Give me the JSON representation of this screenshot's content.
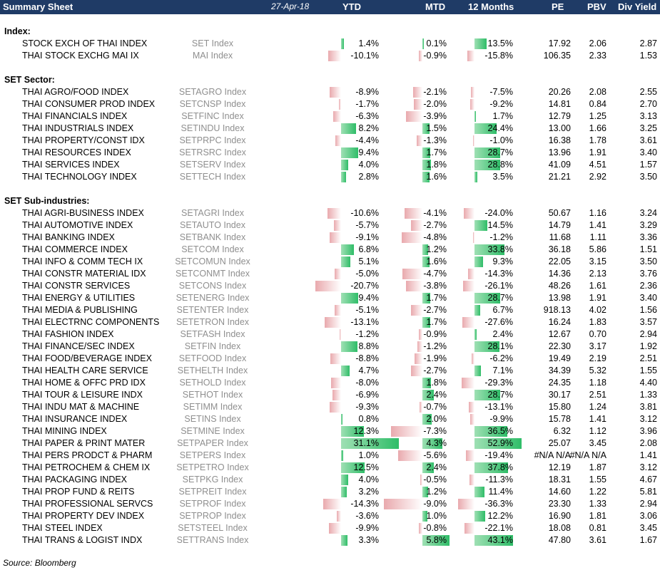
{
  "header": {
    "title": "Summary Sheet",
    "date": "27-Apr-18",
    "cols": [
      "YTD",
      "MTD",
      "12 Months",
      "PE",
      "PBV",
      "Div Yield"
    ]
  },
  "sections": [
    {
      "title": "Index:",
      "rows": [
        {
          "name": "STOCK EXCH OF THAI INDEX",
          "ticker": "SET Index",
          "ytd": "1.4%",
          "ytd_v": 1.4,
          "mtd": "0.1%",
          "mtd_v": 0.1,
          "m12": "13.5%",
          "m12_v": 13.5,
          "pe": "17.92",
          "pbv": "2.06",
          "dy": "2.87"
        },
        {
          "name": "THAI STOCK EXCHG MAI IX",
          "ticker": "MAI Index",
          "ytd": "-10.1%",
          "ytd_v": -10.1,
          "mtd": "-0.9%",
          "mtd_v": -0.9,
          "m12": "-15.8%",
          "m12_v": -15.8,
          "pe": "106.35",
          "pbv": "2.33",
          "dy": "1.53"
        }
      ]
    },
    {
      "title": "SET Sector:",
      "rows": [
        {
          "name": "THAI AGRO/FOOD INDEX",
          "ticker": "SETAGRO Index",
          "ytd": "-8.9%",
          "ytd_v": -8.9,
          "mtd": "-2.1%",
          "mtd_v": -2.1,
          "m12": "-7.5%",
          "m12_v": -7.5,
          "pe": "20.26",
          "pbv": "2.08",
          "dy": "2.55"
        },
        {
          "name": "THAI CONSUMER PROD INDEX",
          "ticker": "SETCNSP Index",
          "ytd": "-1.7%",
          "ytd_v": -1.7,
          "mtd": "-2.0%",
          "mtd_v": -2.0,
          "m12": "-9.2%",
          "m12_v": -9.2,
          "pe": "14.81",
          "pbv": "0.84",
          "dy": "2.70"
        },
        {
          "name": "THAI FINANCIALS INDEX",
          "ticker": "SETFINC Index",
          "ytd": "-6.3%",
          "ytd_v": -6.3,
          "mtd": "-3.9%",
          "mtd_v": -3.9,
          "m12": "1.7%",
          "m12_v": 1.7,
          "pe": "12.79",
          "pbv": "1.25",
          "dy": "3.13"
        },
        {
          "name": "THAI INDUSTRIALS INDEX",
          "ticker": "SETINDU Index",
          "ytd": "8.2%",
          "ytd_v": 8.2,
          "mtd": "1.5%",
          "mtd_v": 1.5,
          "m12": "24.4%",
          "m12_v": 24.4,
          "pe": "13.00",
          "pbv": "1.66",
          "dy": "3.25"
        },
        {
          "name": "THAI PROPERTY/CONST IDX",
          "ticker": "SETPRPC Index",
          "ytd": "-4.4%",
          "ytd_v": -4.4,
          "mtd": "-1.3%",
          "mtd_v": -1.3,
          "m12": "-1.0%",
          "m12_v": -1.0,
          "pe": "16.38",
          "pbv": "1.78",
          "dy": "3.61"
        },
        {
          "name": "THAI RESOURCES INDEX",
          "ticker": "SETRSRC Index",
          "ytd": "9.4%",
          "ytd_v": 9.4,
          "mtd": "1.7%",
          "mtd_v": 1.7,
          "m12": "28.7%",
          "m12_v": 28.7,
          "pe": "13.96",
          "pbv": "1.91",
          "dy": "3.40"
        },
        {
          "name": "THAI SERVICES INDEX",
          "ticker": "SETSERV Index",
          "ytd": "4.0%",
          "ytd_v": 4.0,
          "mtd": "1.8%",
          "mtd_v": 1.8,
          "m12": "28.8%",
          "m12_v": 28.8,
          "pe": "41.09",
          "pbv": "4.51",
          "dy": "1.57"
        },
        {
          "name": "THAI TECHNOLOGY INDEX",
          "ticker": "SETTECH Index",
          "ytd": "2.8%",
          "ytd_v": 2.8,
          "mtd": "1.6%",
          "mtd_v": 1.6,
          "m12": "3.5%",
          "m12_v": 3.5,
          "pe": "21.21",
          "pbv": "2.92",
          "dy": "3.50"
        }
      ]
    },
    {
      "title": "SET Sub-industries:",
      "rows": [
        {
          "name": "THAI AGRI-BUSINESS INDEX",
          "ticker": "SETAGRI Index",
          "ytd": "-10.6%",
          "ytd_v": -10.6,
          "mtd": "-4.1%",
          "mtd_v": -4.1,
          "m12": "-24.0%",
          "m12_v": -24.0,
          "pe": "50.67",
          "pbv": "1.16",
          "dy": "3.24"
        },
        {
          "name": "THAI AUTOMOTIVE INDEX",
          "ticker": "SETAUTO Index",
          "ytd": "-5.7%",
          "ytd_v": -5.7,
          "mtd": "-2.7%",
          "mtd_v": -2.7,
          "m12": "14.5%",
          "m12_v": 14.5,
          "pe": "14.79",
          "pbv": "1.41",
          "dy": "3.29"
        },
        {
          "name": "THAI BANKING INDEX",
          "ticker": "SETBANK Index",
          "ytd": "-9.1%",
          "ytd_v": -9.1,
          "mtd": "-4.8%",
          "mtd_v": -4.8,
          "m12": "-1.2%",
          "m12_v": -1.2,
          "pe": "11.68",
          "pbv": "1.11",
          "dy": "3.36"
        },
        {
          "name": "THAI COMMERCE INDEX",
          "ticker": "SETCOM Index",
          "ytd": "6.8%",
          "ytd_v": 6.8,
          "mtd": "1.2%",
          "mtd_v": 1.2,
          "m12": "33.8%",
          "m12_v": 33.8,
          "pe": "36.18",
          "pbv": "5.86",
          "dy": "1.51"
        },
        {
          "name": "THAI INFO & COMM TECH IX",
          "ticker": "SETCOMUN Index",
          "ytd": "5.1%",
          "ytd_v": 5.1,
          "mtd": "1.6%",
          "mtd_v": 1.6,
          "m12": "9.3%",
          "m12_v": 9.3,
          "pe": "22.05",
          "pbv": "3.15",
          "dy": "3.50"
        },
        {
          "name": "THAI CONSTR MATERIAL IDX",
          "ticker": "SETCONMT Index",
          "ytd": "-5.0%",
          "ytd_v": -5.0,
          "mtd": "-4.7%",
          "mtd_v": -4.7,
          "m12": "-14.3%",
          "m12_v": -14.3,
          "pe": "14.36",
          "pbv": "2.13",
          "dy": "3.76"
        },
        {
          "name": "THAI CONSTR SERVICES",
          "ticker": "SETCONS Index",
          "ytd": "-20.7%",
          "ytd_v": -20.7,
          "mtd": "-3.8%",
          "mtd_v": -3.8,
          "m12": "-26.1%",
          "m12_v": -26.1,
          "pe": "48.26",
          "pbv": "1.61",
          "dy": "2.36"
        },
        {
          "name": "THAI ENERGY & UTILITIES",
          "ticker": "SETENERG Index",
          "ytd": "9.4%",
          "ytd_v": 9.4,
          "mtd": "1.7%",
          "mtd_v": 1.7,
          "m12": "28.7%",
          "m12_v": 28.7,
          "pe": "13.98",
          "pbv": "1.91",
          "dy": "3.40"
        },
        {
          "name": "THAI MEDIA & PUBLISHING",
          "ticker": "SETENTER Index",
          "ytd": "-5.1%",
          "ytd_v": -5.1,
          "mtd": "-2.7%",
          "mtd_v": -2.7,
          "m12": "6.7%",
          "m12_v": 6.7,
          "pe": "918.13",
          "pbv": "4.02",
          "dy": "1.56"
        },
        {
          "name": "THAI ELECTRNC COMPONENTS",
          "ticker": "SETETRON Index",
          "ytd": "-13.1%",
          "ytd_v": -13.1,
          "mtd": "1.7%",
          "mtd_v": 1.7,
          "m12": "-27.6%",
          "m12_v": -27.6,
          "pe": "16.24",
          "pbv": "1.83",
          "dy": "3.57"
        },
        {
          "name": "THAI FASHION INDEX",
          "ticker": "SETFASH Index",
          "ytd": "-1.2%",
          "ytd_v": -1.2,
          "mtd": "-0.9%",
          "mtd_v": -0.9,
          "m12": "2.4%",
          "m12_v": 2.4,
          "pe": "12.67",
          "pbv": "0.70",
          "dy": "2.94"
        },
        {
          "name": "THAI FINANCE/SEC INDEX",
          "ticker": "SETFIN Index",
          "ytd": "8.8%",
          "ytd_v": 8.8,
          "mtd": "-1.2%",
          "mtd_v": -1.2,
          "m12": "28.1%",
          "m12_v": 28.1,
          "pe": "22.30",
          "pbv": "3.17",
          "dy": "1.92"
        },
        {
          "name": "THAI FOOD/BEVERAGE INDEX",
          "ticker": "SETFOOD Index",
          "ytd": "-8.8%",
          "ytd_v": -8.8,
          "mtd": "-1.9%",
          "mtd_v": -1.9,
          "m12": "-6.2%",
          "m12_v": -6.2,
          "pe": "19.49",
          "pbv": "2.19",
          "dy": "2.51"
        },
        {
          "name": "THAI HEALTH CARE SERVICE",
          "ticker": "SETHELTH Index",
          "ytd": "4.7%",
          "ytd_v": 4.7,
          "mtd": "-2.7%",
          "mtd_v": -2.7,
          "m12": "7.1%",
          "m12_v": 7.1,
          "pe": "34.39",
          "pbv": "5.32",
          "dy": "1.55"
        },
        {
          "name": "THAI HOME & OFFC PRD IDX",
          "ticker": "SETHOLD Index",
          "ytd": "-8.0%",
          "ytd_v": -8.0,
          "mtd": "1.8%",
          "mtd_v": 1.8,
          "m12": "-29.3%",
          "m12_v": -29.3,
          "pe": "24.35",
          "pbv": "1.18",
          "dy": "4.40"
        },
        {
          "name": "THAI TOUR & LEISURE INDX",
          "ticker": "SETHOT Index",
          "ytd": "-6.9%",
          "ytd_v": -6.9,
          "mtd": "2.4%",
          "mtd_v": 2.4,
          "m12": "28.7%",
          "m12_v": 28.7,
          "pe": "30.17",
          "pbv": "2.51",
          "dy": "1.33"
        },
        {
          "name": "THAI INDU MAT & MACHINE",
          "ticker": "SETIMM Index",
          "ytd": "-9.3%",
          "ytd_v": -9.3,
          "mtd": "-0.7%",
          "mtd_v": -0.7,
          "m12": "-13.1%",
          "m12_v": -13.1,
          "pe": "15.80",
          "pbv": "1.24",
          "dy": "3.81"
        },
        {
          "name": "THAI INSURANCE INDEX",
          "ticker": "SETINS Index",
          "ytd": "0.8%",
          "ytd_v": 0.8,
          "mtd": "2.0%",
          "mtd_v": 2.0,
          "m12": "-9.9%",
          "m12_v": -9.9,
          "pe": "15.78",
          "pbv": "1.41",
          "dy": "3.12"
        },
        {
          "name": "THAI MINING INDEX",
          "ticker": "SETMINE Index",
          "ytd": "12.3%",
          "ytd_v": 12.3,
          "mtd": "-7.3%",
          "mtd_v": -7.3,
          "m12": "36.5%",
          "m12_v": 36.5,
          "pe": "6.32",
          "pbv": "1.12",
          "dy": "3.96"
        },
        {
          "name": "THAI PAPER & PRINT MATER",
          "ticker": "SETPAPER Index",
          "ytd": "31.1%",
          "ytd_v": 31.1,
          "mtd": "4.3%",
          "mtd_v": 4.3,
          "m12": "52.9%",
          "m12_v": 52.9,
          "pe": "25.07",
          "pbv": "3.45",
          "dy": "2.08"
        },
        {
          "name": "THAI PERS PRODCT & PHARM",
          "ticker": "SETPERS Index",
          "ytd": "1.0%",
          "ytd_v": 1.0,
          "mtd": "-5.6%",
          "mtd_v": -5.6,
          "m12": "-19.4%",
          "m12_v": -19.4,
          "pe": "#N/A N/A",
          "pbv": "#N/A N/A",
          "dy": "1.41"
        },
        {
          "name": "THAI PETROCHEM & CHEM IX",
          "ticker": "SETPETRO Index",
          "ytd": "12.5%",
          "ytd_v": 12.5,
          "mtd": "2.4%",
          "mtd_v": 2.4,
          "m12": "37.8%",
          "m12_v": 37.8,
          "pe": "12.19",
          "pbv": "1.87",
          "dy": "3.12"
        },
        {
          "name": "THAI PACKAGING INDEX",
          "ticker": "SETPKG Index",
          "ytd": "4.0%",
          "ytd_v": 4.0,
          "mtd": "-0.5%",
          "mtd_v": -0.5,
          "m12": "-11.3%",
          "m12_v": -11.3,
          "pe": "18.31",
          "pbv": "1.55",
          "dy": "4.67"
        },
        {
          "name": "THAI PROP FUND & REITS",
          "ticker": "SETPREIT Index",
          "ytd": "3.2%",
          "ytd_v": 3.2,
          "mtd": "1.2%",
          "mtd_v": 1.2,
          "m12": "11.4%",
          "m12_v": 11.4,
          "pe": "14.60",
          "pbv": "1.22",
          "dy": "5.81"
        },
        {
          "name": "THAI PROFESSIONAL SERVCS",
          "ticker": "SETPROF Index",
          "ytd": "-14.3%",
          "ytd_v": -14.3,
          "mtd": "-9.0%",
          "mtd_v": -9.0,
          "m12": "-36.3%",
          "m12_v": -36.3,
          "pe": "23.30",
          "pbv": "1.33",
          "dy": "2.94"
        },
        {
          "name": "THAI PROPERTY DEV INDEX",
          "ticker": "SETPROP Index",
          "ytd": "-3.6%",
          "ytd_v": -3.6,
          "mtd": "1.0%",
          "mtd_v": 1.0,
          "m12": "12.2%",
          "m12_v": 12.2,
          "pe": "16.90",
          "pbv": "1.81",
          "dy": "3.06"
        },
        {
          "name": "THAI STEEL INDEX",
          "ticker": "SETSTEEL Index",
          "ytd": "-9.9%",
          "ytd_v": -9.9,
          "mtd": "-0.8%",
          "mtd_v": -0.8,
          "m12": "-22.1%",
          "m12_v": -22.1,
          "pe": "18.08",
          "pbv": "0.81",
          "dy": "3.45"
        },
        {
          "name": "THAI TRANS & LOGIST INDX",
          "ticker": "SETTRANS Index",
          "ytd": "3.3%",
          "ytd_v": 3.3,
          "mtd": "5.8%",
          "mtd_v": 5.8,
          "m12": "43.1%",
          "m12_v": 43.1,
          "pe": "47.80",
          "pbv": "3.61",
          "dy": "1.67"
        }
      ]
    }
  ],
  "source": "Source: Bloomberg",
  "colors": {
    "header_bg": "#1f3b66",
    "pos_bar": "#2fbd68",
    "neg_bar": "#e9a9ad",
    "ticker_text": "#8f8f8f"
  }
}
